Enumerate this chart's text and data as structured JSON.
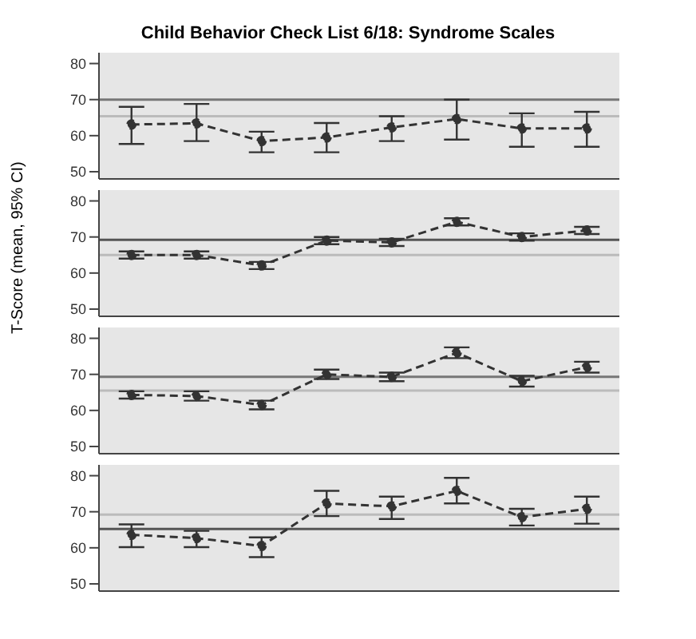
{
  "chart_data": [
    {
      "type": "line",
      "title": "Child Behavior Check List 6/18: Syndrome Scales",
      "categories": [
        null,
        null,
        null,
        null,
        null,
        null,
        null,
        null
      ],
      "series": [
        {
          "color": "#333333",
          "values": [
            63.1,
            63.4,
            58.5,
            59.5,
            62.3,
            64.6,
            62,
            62
          ],
          "errors": [
            [
              57.7,
              68
            ],
            [
              58.5,
              68.8
            ],
            [
              55.4,
              61.1
            ],
            [
              55.4,
              63.5
            ],
            [
              58.5,
              65.4
            ],
            [
              58.9,
              70
            ],
            [
              56.9,
              66.2
            ],
            [
              56.9,
              66.6
            ]
          ]
        }
      ],
      "ylim": [
        48,
        83
      ],
      "yticks": [
        50,
        60,
        70,
        80
      ],
      "ref_lines": [
        {
          "axis": "y",
          "value": 70,
          "color": "#777777"
        },
        {
          "axis": "y",
          "value": 65.4,
          "color": "#bbbbbb"
        }
      ],
      "marker": "circle",
      "line_style": "dashed",
      "tick_labels": "y",
      "grid": false,
      "legend": false
    },
    {
      "type": "line",
      "ylabel": "T-Score (mean, 95% CI)",
      "categories": [
        null,
        null,
        null,
        null,
        null,
        null,
        null,
        null
      ],
      "series": [
        {
          "color": "#333333",
          "values": [
            65,
            65,
            62.1,
            69,
            68.5,
            74.2,
            70,
            71.8
          ],
          "errors": [
            1,
            1,
            1,
            1,
            1,
            1,
            1,
            1
          ]
        }
      ],
      "ylim": [
        48,
        83
      ],
      "yticks": [
        50,
        60,
        70,
        80
      ],
      "ref_lines": [
        {
          "axis": "y",
          "value": 69.2,
          "color": "#555555"
        },
        {
          "axis": "y",
          "value": 65,
          "color": "#bbbbbb"
        }
      ],
      "marker": "circle",
      "line_style": "dashed",
      "tick_labels": "y",
      "grid": false,
      "legend": false
    },
    {
      "type": "line",
      "categories": [
        null,
        null,
        null,
        null,
        null,
        null,
        null,
        null
      ],
      "series": [
        {
          "color": "#333333",
          "values": [
            64.3,
            64,
            61.5,
            70,
            69.3,
            76,
            68.1,
            72
          ],
          "errors": [
            1,
            1.3,
            1.2,
            1.3,
            1.2,
            1.5,
            1.5,
            1.5
          ]
        }
      ],
      "ylim": [
        48,
        83
      ],
      "yticks": [
        50,
        60,
        70,
        80
      ],
      "ref_lines": [
        {
          "axis": "y",
          "value": 69.3,
          "color": "#777777"
        },
        {
          "axis": "y",
          "value": 65.5,
          "color": "#bbbbbb"
        }
      ],
      "marker": "circle",
      "line_style": "dashed",
      "tick_labels": "y",
      "grid": false,
      "legend": false
    },
    {
      "type": "line",
      "categories": [
        null,
        null,
        null,
        null,
        null,
        null,
        null,
        null
      ],
      "series": [
        {
          "color": "#333333",
          "values": [
            63.6,
            62.7,
            60.5,
            72.3,
            71.5,
            75.8,
            68.5,
            70.8
          ],
          "errors": [
            [
              60.2,
              66.5
            ],
            [
              60.2,
              64.7
            ],
            [
              57.4,
              62.9
            ],
            [
              68.8,
              75.8
            ],
            [
              68,
              74.2
            ],
            [
              72.3,
              79.4
            ],
            [
              66.2,
              70.8
            ],
            [
              66.7,
              74.2
            ]
          ]
        }
      ],
      "ylim": [
        48,
        83
      ],
      "yticks": [
        50,
        60,
        70,
        80
      ],
      "ref_lines": [
        {
          "axis": "y",
          "value": 69.2,
          "color": "#bbbbbb"
        },
        {
          "axis": "y",
          "value": 65.2,
          "color": "#555555"
        }
      ],
      "marker": "circle",
      "line_style": "dashed",
      "tick_labels": "y",
      "grid": false,
      "legend": false
    }
  ]
}
